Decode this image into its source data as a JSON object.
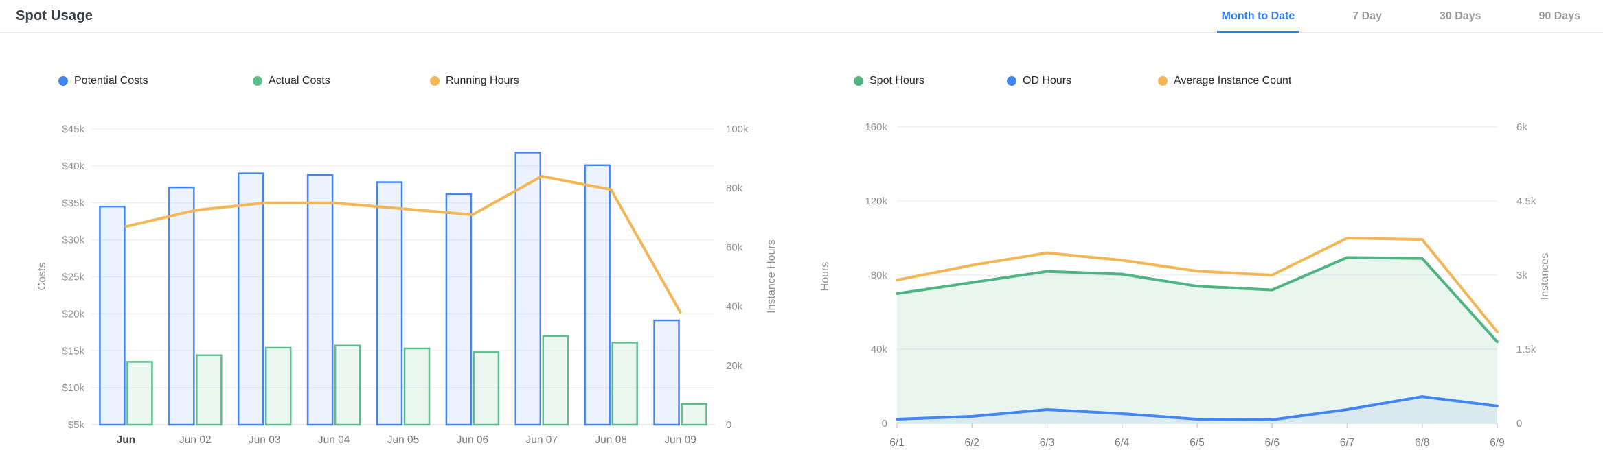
{
  "header": {
    "title": "Spot Usage",
    "accent_color": "#2D7FF0",
    "tabs": [
      {
        "label": "Month to Date",
        "active": true
      },
      {
        "label": "7 Day",
        "active": false
      },
      {
        "label": "30 Days",
        "active": false
      },
      {
        "label": "90 Days",
        "active": false
      }
    ]
  },
  "chart_data": [
    {
      "type": "bar",
      "title": "Costs and running hours by day",
      "legend_position": "top",
      "grid": true,
      "categories": [
        "Jun",
        "Jun 02",
        "Jun 03",
        "Jun 04",
        "Jun 05",
        "Jun 06",
        "Jun 07",
        "Jun 08",
        "Jun 09"
      ],
      "series": [
        {
          "name": "Potential Costs",
          "kind": "bar",
          "axis": "left",
          "unit": "thousand USD",
          "color": "#4285F4",
          "fill": "rgba(66,133,244,0.10)",
          "values": [
            34.5,
            37.1,
            39.0,
            38.8,
            37.8,
            36.2,
            41.8,
            40.1,
            19.1
          ]
        },
        {
          "name": "Actual Costs",
          "kind": "bar",
          "axis": "left",
          "unit": "thousand USD",
          "color": "#5CBC8C",
          "fill": "rgba(92,188,140,0.10)",
          "values": [
            13.5,
            14.4,
            15.4,
            15.7,
            15.3,
            14.8,
            17.0,
            16.1,
            7.8
          ]
        },
        {
          "name": "Running Hours",
          "kind": "line",
          "axis": "right",
          "unit": "thousand instance hours",
          "color": "#F3B656",
          "values": [
            67,
            72.5,
            75,
            75,
            73,
            71,
            84,
            79.5,
            38
          ]
        }
      ],
      "left_axis": {
        "label": "Costs",
        "min": 5,
        "max": 45,
        "ticks": [
          "$5k",
          "$10k",
          "$15k",
          "$20k",
          "$25k",
          "$30k",
          "$35k",
          "$40k",
          "$45k"
        ],
        "tick_values": [
          5,
          10,
          15,
          20,
          25,
          30,
          35,
          40,
          45
        ]
      },
      "right_axis": {
        "label": "Instance Hours",
        "min": 0,
        "max": 100,
        "ticks": [
          "0",
          "20k",
          "40k",
          "60k",
          "80k",
          "100k"
        ],
        "tick_values": [
          0,
          20,
          40,
          60,
          80,
          100
        ]
      }
    },
    {
      "type": "area",
      "title": "Spot and on-demand hours with average instance count by day",
      "legend_position": "top",
      "grid": true,
      "categories": [
        "6/1",
        "6/2",
        "6/3",
        "6/4",
        "6/5",
        "6/6",
        "6/7",
        "6/8",
        "6/9"
      ],
      "series": [
        {
          "name": "Spot Hours",
          "kind": "area-line",
          "axis": "left",
          "unit": "thousand hours",
          "color": "#4FB482",
          "fill": "rgba(87,181,133,0.13)",
          "values": [
            70,
            76,
            82,
            80.5,
            74,
            72,
            89.5,
            89,
            44
          ]
        },
        {
          "name": "OD Hours",
          "kind": "area-line",
          "axis": "left",
          "unit": "thousand hours",
          "color": "#4285F4",
          "fill": "rgba(66,133,244,0.09)",
          "values": [
            2.2,
            3.7,
            7.4,
            5.2,
            2.2,
            1.9,
            7.4,
            14.4,
            9.3
          ]
        },
        {
          "name": "Average Instance Count",
          "kind": "line",
          "axis": "right",
          "unit": "thousand instances",
          "color": "#F3B656",
          "values": [
            2.9,
            3.2,
            3.45,
            3.3,
            3.08,
            3.0,
            3.75,
            3.72,
            1.85
          ]
        }
      ],
      "left_axis": {
        "label": "Hours",
        "min": 0,
        "max": 160,
        "ticks": [
          "0",
          "40k",
          "80k",
          "120k",
          "160k"
        ],
        "tick_values": [
          0,
          40,
          80,
          120,
          160
        ]
      },
      "right_axis": {
        "label": "Instances",
        "min": 0,
        "max": 6,
        "ticks": [
          "0",
          "1.5k",
          "3k",
          "4.5k",
          "6k"
        ],
        "tick_values": [
          0,
          1.5,
          3,
          4.5,
          6
        ]
      }
    }
  ],
  "style": {
    "gridline_color": "#F0F0F1",
    "axis_line_color": "#E2E3E5",
    "tick_mark_color": "#CCCED2",
    "tick_text_color": "#8E9094",
    "x_text_color": "#77797E",
    "x_first_text_color": "#46484D"
  }
}
